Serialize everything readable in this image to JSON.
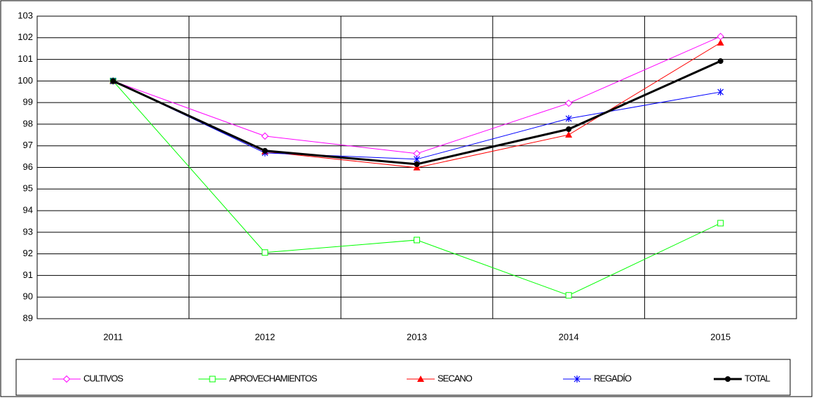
{
  "chart_data": {
    "type": "line",
    "categories": [
      "2011",
      "2012",
      "2013",
      "2014",
      "2015"
    ],
    "series": [
      {
        "name": "CULTIVOS",
        "color": "#ff00ff",
        "marker": "diamond",
        "values": [
          100,
          97.45,
          96.64,
          98.97,
          102.06
        ]
      },
      {
        "name": "APROVECHAMIENTOS",
        "color": "#00ff00",
        "marker": "square",
        "values": [
          100,
          92.06,
          92.64,
          90.08,
          93.42
        ]
      },
      {
        "name": "SECANO",
        "color": "#ff0000",
        "marker": "triangle",
        "values": [
          100,
          96.73,
          95.99,
          97.51,
          101.77
        ]
      },
      {
        "name": "REGADÍO",
        "color": "#0000ff",
        "marker": "star",
        "values": [
          100,
          96.67,
          96.38,
          98.26,
          99.49
        ]
      },
      {
        "name": "TOTAL",
        "color": "#000000",
        "marker": "circle",
        "values": [
          100,
          96.77,
          96.15,
          97.77,
          100.92
        ]
      }
    ],
    "ylim": [
      89,
      103
    ],
    "yticks": [
      89,
      90,
      91,
      92,
      93,
      94,
      95,
      96,
      97,
      98,
      99,
      100,
      101,
      102,
      103
    ],
    "grid": true,
    "legend": "bottom"
  }
}
